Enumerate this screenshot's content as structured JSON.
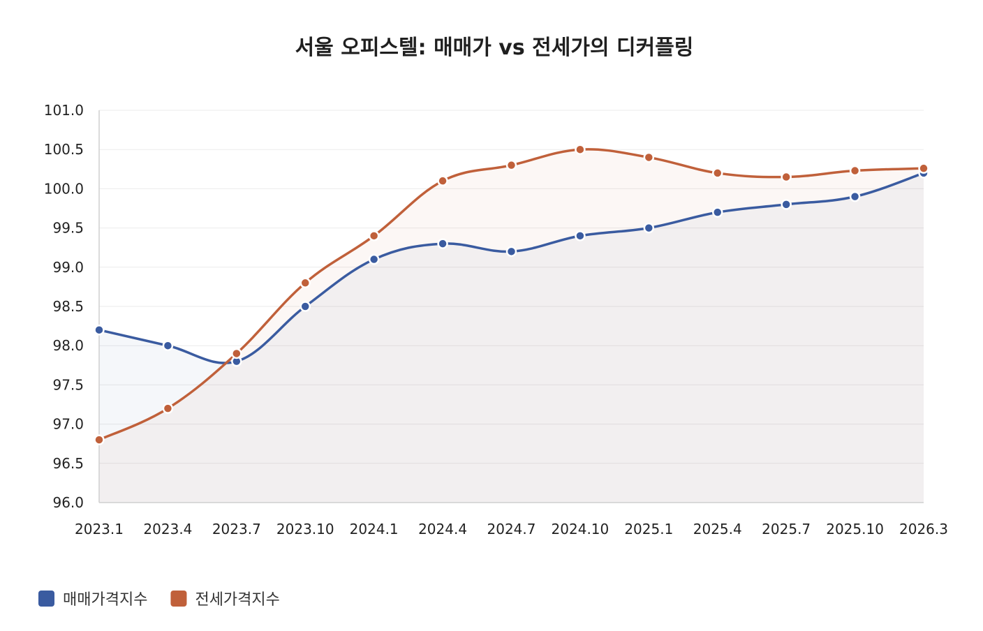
{
  "chart_data": {
    "type": "line",
    "title": "서울 오피스텔: 매매가 vs 전세가의 디커플링",
    "xlabel": "",
    "ylabel": "",
    "ylim": [
      96.0,
      101.0
    ],
    "ytick_step": 0.5,
    "grid": true,
    "legend_position": "bottom-left",
    "x": [
      "2023.1",
      "2023.4",
      "2023.7",
      "2023.10",
      "2024.1",
      "2024.4",
      "2024.7",
      "2024.10",
      "2025.1",
      "2025.4",
      "2025.7",
      "2025.10",
      "2026.3"
    ],
    "series": [
      {
        "name": "매매가격지수",
        "color": "#3a5ba0",
        "values": [
          98.2,
          98.0,
          97.8,
          98.5,
          99.1,
          99.3,
          99.2,
          99.4,
          99.5,
          99.7,
          99.8,
          99.9,
          100.2
        ]
      },
      {
        "name": "전세가격지수",
        "color": "#c0603a",
        "values": [
          96.8,
          97.2,
          97.9,
          98.8,
          99.4,
          100.1,
          100.3,
          100.5,
          100.4,
          100.2,
          100.15,
          100.23,
          100.26
        ]
      }
    ]
  }
}
